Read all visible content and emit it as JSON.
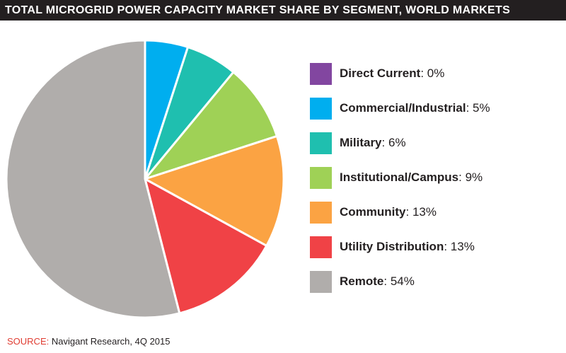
{
  "title": "TOTAL MICROGRID POWER CAPACITY MARKET SHARE BY SEGMENT, WORLD MARKETS",
  "source": {
    "label": "SOURCE:",
    "text": " Navigant Research, 4Q 2015"
  },
  "chart_data": {
    "type": "pie",
    "legend_position": "right",
    "series": [
      {
        "name": "Direct Current",
        "value": 0,
        "label": "0%",
        "color": "#8246a0"
      },
      {
        "name": "Commercial/Industrial",
        "value": 5,
        "label": "5%",
        "color": "#00aeef"
      },
      {
        "name": "Military",
        "value": 6,
        "label": "6%",
        "color": "#1fbfaf"
      },
      {
        "name": "Institutional/Campus",
        "value": 9,
        "label": "9%",
        "color": "#9fd156"
      },
      {
        "name": "Community",
        "value": 13,
        "label": "13%",
        "color": "#fba343"
      },
      {
        "name": "Utility Distribution",
        "value": 13,
        "label": "13%",
        "color": "#f04246"
      },
      {
        "name": "Remote",
        "value": 54,
        "label": "54%",
        "color": "#b0adab"
      }
    ]
  }
}
